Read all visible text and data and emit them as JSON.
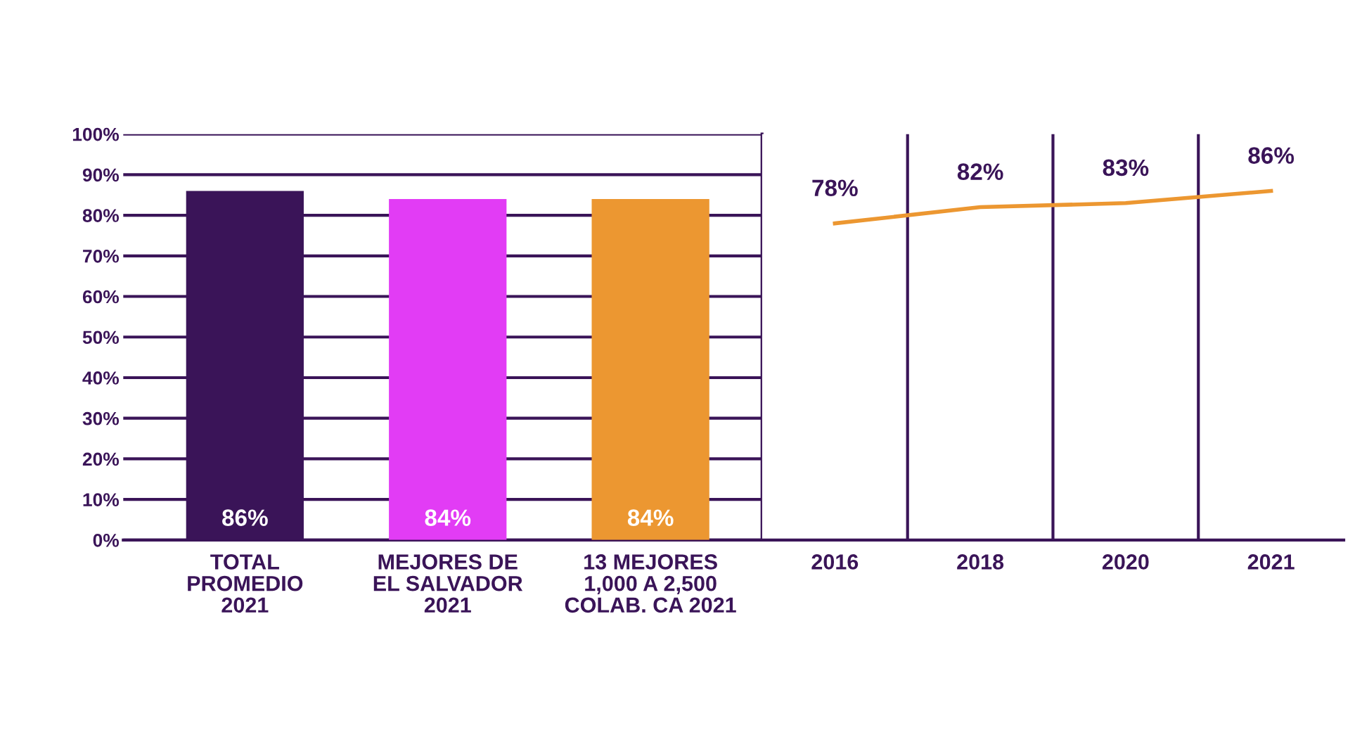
{
  "chart_data": [
    {
      "type": "bar",
      "categories": [
        "TOTAL\nPROMEDIO\n2021",
        "MEJORES DE\nEL SALVADOR\n2021",
        "13 MEJORES\n1,000 A 2,500\nCOLAB. CA 2021"
      ],
      "values": [
        86,
        84,
        84
      ],
      "colors": [
        "#3a1458",
        "#e23cf5",
        "#ec9731"
      ],
      "ylim": [
        0,
        100
      ],
      "yticks": [
        {
          "value": 0,
          "label": "0%"
        },
        {
          "value": 10,
          "label": "10%"
        },
        {
          "value": 20,
          "label": "20%"
        },
        {
          "value": 30,
          "label": "30%"
        },
        {
          "value": 40,
          "label": "40%"
        },
        {
          "value": 50,
          "label": "50%"
        },
        {
          "value": 60,
          "label": "60%"
        },
        {
          "value": 70,
          "label": "70%"
        },
        {
          "value": 80,
          "label": "80%"
        },
        {
          "value": 90,
          "label": "90%"
        },
        {
          "value": 100,
          "label": "100%"
        }
      ],
      "grid": "y",
      "value_labels": [
        "86%",
        "84%",
        "84%"
      ]
    },
    {
      "type": "line",
      "categories": [
        "2016",
        "2018",
        "2020",
        "2021"
      ],
      "series": [
        {
          "color": "#ec9731",
          "values": [
            78,
            82,
            83,
            86
          ]
        }
      ],
      "ylim": [
        0,
        100
      ],
      "tick_labels": "x",
      "value_labels": [
        "78%",
        "82%",
        "83%",
        "86%"
      ]
    }
  ]
}
